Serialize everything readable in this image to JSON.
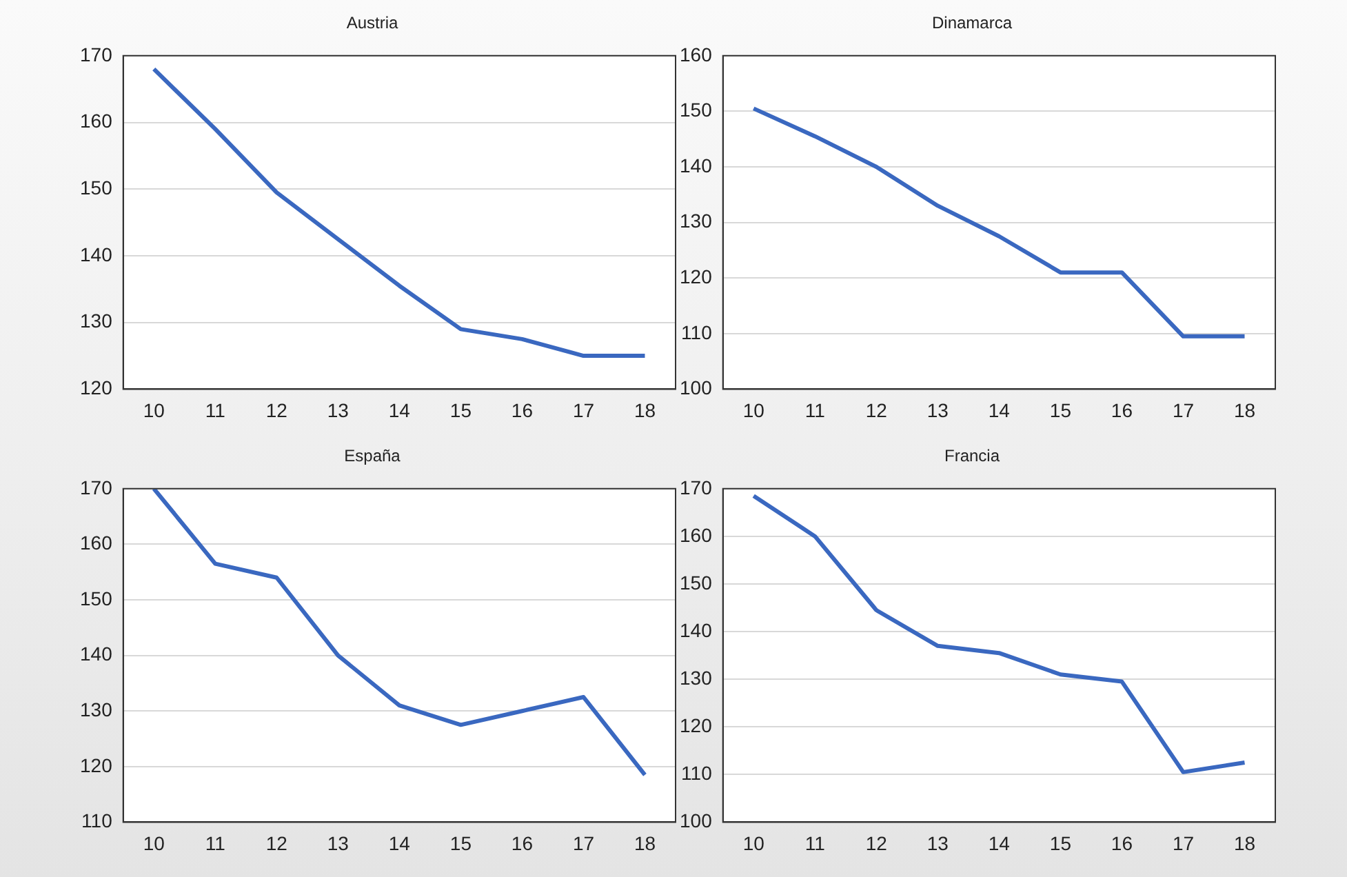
{
  "chart_data": [
    {
      "type": "line",
      "title": "Austria",
      "categories": [
        "10",
        "11",
        "12",
        "13",
        "14",
        "15",
        "16",
        "17",
        "18"
      ],
      "series": [
        {
          "color": "#3a68c0",
          "values": [
            168,
            159,
            149.5,
            142.5,
            135.5,
            129,
            127.5,
            125,
            125
          ]
        }
      ],
      "ylim": [
        120,
        170
      ],
      "yticks": [
        120,
        130,
        140,
        150,
        160,
        170
      ],
      "grid": "y",
      "legend": false,
      "marker": "none"
    },
    {
      "type": "line",
      "title": "Dinamarca",
      "categories": [
        "10",
        "11",
        "12",
        "13",
        "14",
        "15",
        "16",
        "17",
        "18"
      ],
      "series": [
        {
          "color": "#3a68c0",
          "values": [
            150.5,
            145.5,
            140,
            133,
            127.5,
            121,
            121,
            109.5,
            109.5
          ]
        }
      ],
      "ylim": [
        100,
        160
      ],
      "yticks": [
        100,
        110,
        120,
        130,
        140,
        150,
        160
      ],
      "grid": "y",
      "legend": false,
      "marker": "none"
    },
    {
      "type": "line",
      "title": "España",
      "categories": [
        "10",
        "11",
        "12",
        "13",
        "14",
        "15",
        "16",
        "17",
        "18"
      ],
      "series": [
        {
          "color": "#3a68c0",
          "values": [
            170,
            156.5,
            154,
            140,
            131,
            127.5,
            130,
            132.5,
            118.5
          ]
        }
      ],
      "ylim": [
        110,
        170
      ],
      "yticks": [
        110,
        120,
        130,
        140,
        150,
        160,
        170
      ],
      "grid": "y",
      "legend": false,
      "marker": "none"
    },
    {
      "type": "line",
      "title": "Francia",
      "categories": [
        "10",
        "11",
        "12",
        "13",
        "14",
        "15",
        "16",
        "17",
        "18"
      ],
      "series": [
        {
          "color": "#3a68c0",
          "values": [
            168.5,
            160,
            144.5,
            137,
            135.5,
            131,
            129.5,
            110.5,
            112.5
          ]
        }
      ],
      "ylim": [
        100,
        170
      ],
      "yticks": [
        100,
        110,
        120,
        130,
        140,
        150,
        160,
        170
      ],
      "grid": "y",
      "legend": false,
      "marker": "none"
    }
  ]
}
